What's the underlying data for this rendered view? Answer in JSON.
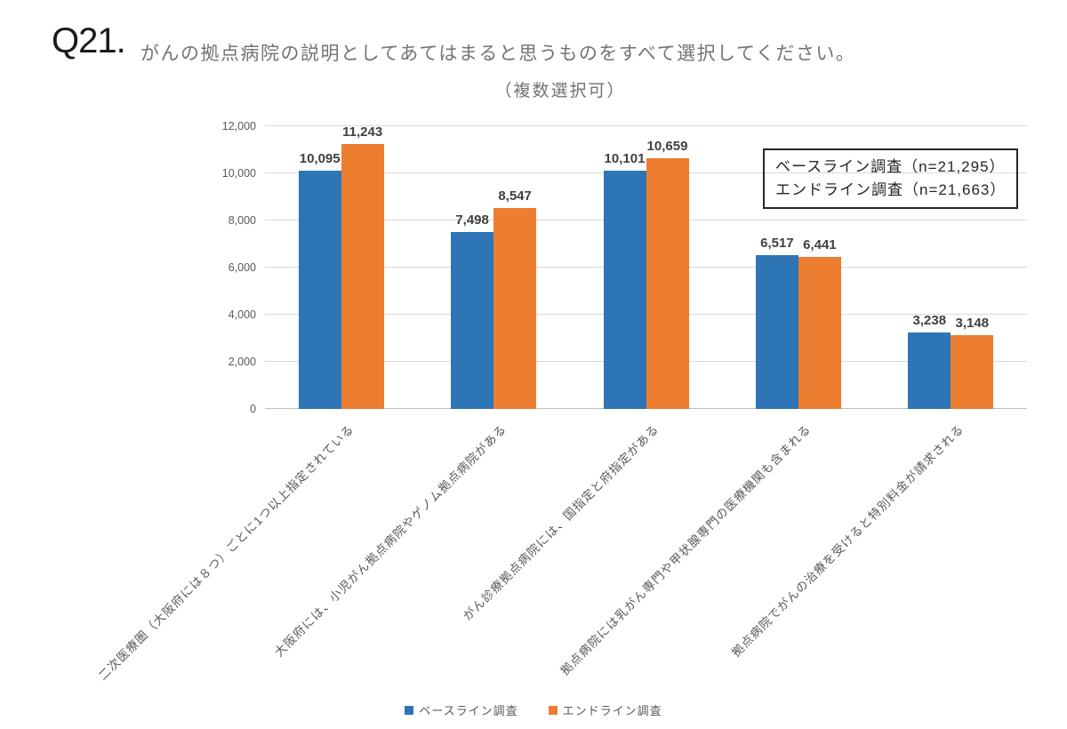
{
  "header": {
    "q_label": "Q21.",
    "title": "がんの拠点病院の説明としてあてはまると思うものをすべて選択してください。",
    "subtitle": "（複数選択可）"
  },
  "annotation_box": {
    "lines": [
      "ベースライン調査（n=21,295）",
      "エンドライン調査（n=21,663）"
    ]
  },
  "chart_data": {
    "type": "bar",
    "categories": [
      "二次医療圏（大阪府には８つ）ごとに1つ以上指定されている",
      "大阪府には、小児がん拠点病院やゲノム拠点病院がある",
      "がん診療拠点病院には、国指定と府指定がある",
      "拠点病院には乳がん専門や甲状腺専門の医療機関も含まれる",
      "拠点病院でがんの治療を受けると特別料金が請求される"
    ],
    "series": [
      {
        "name": "ベースライン調査",
        "color": "#2e75b6",
        "values": [
          10095,
          7498,
          10101,
          6517,
          3238
        ]
      },
      {
        "name": "エンドライン調査",
        "color": "#ed7d31",
        "values": [
          11243,
          8547,
          10659,
          6441,
          3148
        ]
      }
    ],
    "title": "",
    "xlabel": "",
    "ylabel": "",
    "ylim": [
      0,
      12000
    ],
    "yticks": [
      0,
      2000,
      4000,
      6000,
      8000,
      10000,
      12000
    ],
    "grid": true,
    "legend_position": "bottom",
    "colors": {
      "gridline": "#d9d9d9",
      "axis_line": "#bfbfbf",
      "tick_label": "#595959",
      "value_label": "#404040"
    }
  }
}
